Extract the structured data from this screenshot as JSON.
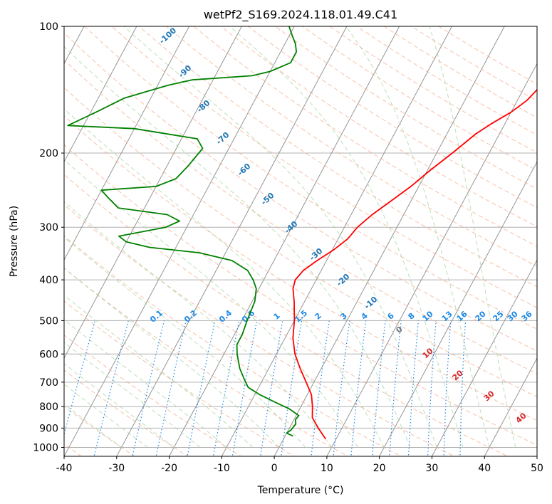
{
  "chart_data": {
    "type": "line",
    "diagram": "skew-t log-p",
    "title": "wetPf2_S169.2024.118.01.49.C41",
    "xlabel": "Temperature (°C)",
    "ylabel": "Pressure (hPa)",
    "xlim": [
      -40,
      50
    ],
    "ylim": [
      1050,
      100
    ],
    "y_scale": "log",
    "grid": true,
    "x_ticks": [
      -40,
      -30,
      -20,
      -10,
      0,
      10,
      20,
      30,
      40,
      50
    ],
    "y_ticks": [
      100,
      200,
      300,
      400,
      500,
      600,
      700,
      800,
      900,
      1000
    ],
    "series": [
      {
        "color": "#ff0000",
        "points": [
          {
            "p": 955,
            "t": 8.0
          },
          {
            "p": 900,
            "t": 5.5
          },
          {
            "p": 850,
            "t": 3.3
          },
          {
            "p": 800,
            "t": 2.2
          },
          {
            "p": 750,
            "t": 0.8
          },
          {
            "p": 700,
            "t": -1.5
          },
          {
            "p": 650,
            "t": -4.0
          },
          {
            "p": 600,
            "t": -6.5
          },
          {
            "p": 550,
            "t": -8.5
          },
          {
            "p": 500,
            "t": -10.0
          },
          {
            "p": 450,
            "t": -12.0
          },
          {
            "p": 420,
            "t": -13.5
          },
          {
            "p": 400,
            "t": -14.0
          },
          {
            "p": 380,
            "t": -13.4
          },
          {
            "p": 360,
            "t": -11.8
          },
          {
            "p": 340,
            "t": -9.8
          },
          {
            "p": 320,
            "t": -8.2
          },
          {
            "p": 300,
            "t": -7.5
          },
          {
            "p": 280,
            "t": -6.0
          },
          {
            "p": 260,
            "t": -3.8
          },
          {
            "p": 240,
            "t": -1.5
          },
          {
            "p": 220,
            "t": 0.5
          },
          {
            "p": 200,
            "t": 3.0
          },
          {
            "p": 180,
            "t": 5.5
          },
          {
            "p": 170,
            "t": 7.5
          },
          {
            "p": 160,
            "t": 10.0
          },
          {
            "p": 150,
            "t": 11.8
          },
          {
            "p": 140,
            "t": 12.8
          },
          {
            "p": 130,
            "t": 13.5
          },
          {
            "p": 120,
            "t": 14.0
          },
          {
            "p": 115,
            "t": 15.5
          },
          {
            "p": 110,
            "t": 17.5
          },
          {
            "p": 105,
            "t": 19.3
          },
          {
            "p": 100,
            "t": 20.0
          }
        ]
      },
      {
        "color": "#008000",
        "points": [
          {
            "p": 940,
            "t": 1.5
          },
          {
            "p": 930,
            "t": 0.5
          },
          {
            "p": 925,
            "t": 0.0
          },
          {
            "p": 910,
            "t": 0.5
          },
          {
            "p": 880,
            "t": 0.8
          },
          {
            "p": 860,
            "t": 0.3
          },
          {
            "p": 840,
            "t": 0.5
          },
          {
            "p": 810,
            "t": -2.0
          },
          {
            "p": 780,
            "t": -5.5
          },
          {
            "p": 750,
            "t": -9.0
          },
          {
            "p": 720,
            "t": -12.0
          },
          {
            "p": 690,
            "t": -13.5
          },
          {
            "p": 650,
            "t": -15.5
          },
          {
            "p": 600,
            "t": -17.5
          },
          {
            "p": 570,
            "t": -18.5
          },
          {
            "p": 540,
            "t": -18.5
          },
          {
            "p": 500,
            "t": -19.0
          },
          {
            "p": 450,
            "t": -19.5
          },
          {
            "p": 420,
            "t": -20.5
          },
          {
            "p": 400,
            "t": -22.0
          },
          {
            "p": 380,
            "t": -24.0
          },
          {
            "p": 360,
            "t": -28.0
          },
          {
            "p": 345,
            "t": -35.0
          },
          {
            "p": 335,
            "t": -45.0
          },
          {
            "p": 325,
            "t": -50.0
          },
          {
            "p": 315,
            "t": -52.0
          },
          {
            "p": 300,
            "t": -44.0
          },
          {
            "p": 290,
            "t": -42.0
          },
          {
            "p": 280,
            "t": -45.0
          },
          {
            "p": 270,
            "t": -55.0
          },
          {
            "p": 255,
            "t": -58.0
          },
          {
            "p": 245,
            "t": -60.0
          },
          {
            "p": 240,
            "t": -50.0
          },
          {
            "p": 230,
            "t": -47.0
          },
          {
            "p": 215,
            "t": -46.0
          },
          {
            "p": 195,
            "t": -45.0
          },
          {
            "p": 185,
            "t": -47.0
          },
          {
            "p": 175,
            "t": -60.0
          },
          {
            "p": 172,
            "t": -73.0
          },
          {
            "p": 160,
            "t": -69.0
          },
          {
            "p": 148,
            "t": -65.0
          },
          {
            "p": 138,
            "t": -58.0
          },
          {
            "p": 134,
            "t": -54.0
          },
          {
            "p": 131,
            "t": -43.0
          },
          {
            "p": 128,
            "t": -40.0
          },
          {
            "p": 122,
            "t": -37.0
          },
          {
            "p": 115,
            "t": -37.0
          },
          {
            "p": 110,
            "t": -38.0
          },
          {
            "p": 105,
            "t": -39.5
          },
          {
            "p": 100,
            "t": -41.0
          }
        ]
      }
    ],
    "dry_adiabats": [
      -100,
      -90,
      -80,
      -70,
      -60,
      -50,
      -40,
      -30,
      -20,
      -10
    ],
    "mixing_ratios": [
      "0.1",
      "0.2",
      "0.4",
      "0.6",
      "1",
      "1.5",
      "2",
      "3",
      "4",
      "6",
      "8",
      "10",
      "13",
      "16",
      "20",
      "25",
      "30",
      "36"
    ],
    "moist_adiabats": [
      0,
      10,
      20,
      30,
      40
    ],
    "colors": {
      "temperature": "#ff0000",
      "dewpoint": "#008000",
      "dry_adiabat_label": "#1f77b4",
      "mixing_ratio": "#1e88e5",
      "moist_adiabat_label": "#d62728",
      "isotherm": "#8a8a8a",
      "grid": "#b0b0b0"
    }
  }
}
